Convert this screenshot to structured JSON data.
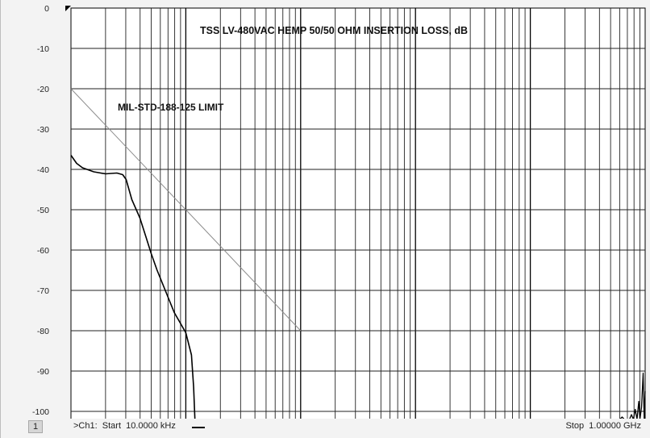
{
  "chart_data": {
    "type": "line",
    "title": "TSS LV-480VAC HEMP 50/50 OHM INSERTION LOSS, dB",
    "ylim": [
      -102,
      0
    ],
    "yticks": [
      0,
      -10,
      -20,
      -30,
      -40,
      -50,
      -60,
      -70,
      -80,
      -90,
      -100
    ],
    "xscale": "log",
    "xlim": [
      10000,
      1000000000
    ],
    "grid": true,
    "annotations": [
      {
        "text": "MIL-STD-188-125 LIMIT"
      }
    ],
    "series": [
      {
        "x": [
          10000,
          1000000
        ],
        "y": [
          -20,
          -80
        ],
        "color": "#8c8c8c",
        "width": 1
      },
      {
        "x": [
          10000,
          11200,
          12600,
          15800,
          20000,
          25100,
          28200,
          30200,
          33900,
          39800,
          44700,
          50100,
          56200,
          63100,
          70800,
          79400,
          89100,
          100000,
          112000,
          117000,
          120000,
          121000
        ],
        "y": [
          -36.5,
          -38.5,
          -39.6,
          -40.6,
          -41.1,
          -40.9,
          -41.3,
          -42.5,
          -47.5,
          -52,
          -56.5,
          -61,
          -65,
          -68.5,
          -72,
          -75.5,
          -78,
          -80.5,
          -86,
          -94,
          -102,
          -102
        ],
        "color": "#000000",
        "width": 1.6
      },
      {
        "x": [
          600000000,
          630000000,
          660000000,
          700000000,
          730000000,
          760000000,
          790000000,
          820000000,
          850000000,
          880000000,
          900000000,
          930000000,
          960000000,
          980000000,
          1000000000
        ],
        "y": [
          -102,
          -101.4,
          -102,
          -102,
          -102,
          -100.8,
          -102,
          -99.5,
          -102,
          -97.5,
          -102,
          -99,
          -90.5,
          -102,
          -95
        ],
        "color": "#000000",
        "width": 1.3
      }
    ]
  },
  "status": {
    "channel": "1",
    "start": ">Ch1:  Start  10.0000 kHz",
    "stop": "Stop  1.00000 GHz"
  }
}
